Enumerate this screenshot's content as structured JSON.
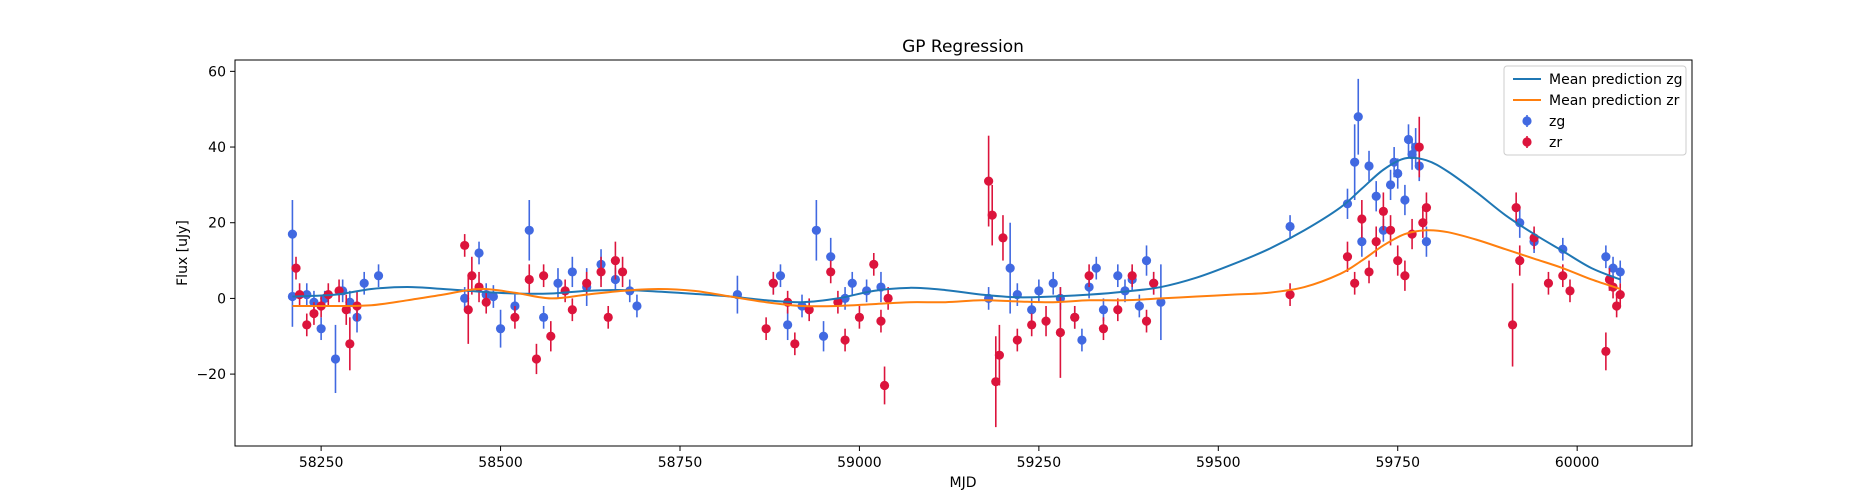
{
  "chart_data": {
    "type": "scatter",
    "title": "GP Regression",
    "xlabel": "MJD",
    "ylabel": "Flux [uJy]",
    "xlim": [
      58130,
      60160
    ],
    "ylim": [
      -39,
      63
    ],
    "xticks": [
      58250,
      58500,
      58750,
      59000,
      59250,
      59500,
      59750,
      60000
    ],
    "yticks": [
      -20,
      0,
      20,
      40,
      60
    ],
    "legend_position": "top-right",
    "grid": false,
    "lines": [
      {
        "name": "Mean prediction zg",
        "color": "#1f77b4",
        "x": [
          58210,
          58270,
          58320,
          58370,
          58420,
          58470,
          58520,
          58570,
          58620,
          58670,
          58720,
          58770,
          58820,
          58870,
          58920,
          58970,
          59020,
          59070,
          59120,
          59170,
          59220,
          59270,
          59320,
          59370,
          59420,
          59470,
          59520,
          59570,
          59620,
          59670,
          59700,
          59730,
          59760,
          59790,
          59820,
          59860,
          59900,
          59940,
          59980,
          60020,
          60060
        ],
        "y": [
          0.5,
          1.0,
          2.5,
          3.0,
          2.5,
          1.8,
          1.3,
          1.3,
          2.0,
          2.2,
          1.8,
          1.2,
          0.5,
          -0.5,
          -1.0,
          0.0,
          2.0,
          2.8,
          2.2,
          1.0,
          0.3,
          0.5,
          1.0,
          1.8,
          3.0,
          5.5,
          9.0,
          13.0,
          18.0,
          24.0,
          29.0,
          34.0,
          37.0,
          36.5,
          33.5,
          28.0,
          22.0,
          17.0,
          12.5,
          8.0,
          5.0
        ]
      },
      {
        "name": "Mean prediction zr",
        "color": "#ff7f0e",
        "x": [
          58210,
          58270,
          58320,
          58370,
          58420,
          58470,
          58520,
          58570,
          58620,
          58670,
          58720,
          58770,
          58820,
          58870,
          58920,
          58970,
          59020,
          59070,
          59120,
          59170,
          59220,
          59270,
          59320,
          59370,
          59420,
          59470,
          59520,
          59570,
          59620,
          59670,
          59700,
          59730,
          59760,
          59790,
          59820,
          59860,
          59900,
          59940,
          59980,
          60020,
          60060
        ],
        "y": [
          -2.0,
          -2.0,
          -1.8,
          -0.5,
          1.0,
          2.5,
          1.5,
          0.0,
          1.0,
          2.0,
          2.5,
          2.0,
          0.5,
          -1.0,
          -2.0,
          -2.0,
          -1.5,
          -1.0,
          -1.0,
          -0.5,
          -0.8,
          -1.0,
          -0.5,
          -0.5,
          0.0,
          0.5,
          1.0,
          1.5,
          3.0,
          6.5,
          10.0,
          14.0,
          17.0,
          18.0,
          17.5,
          15.5,
          13.0,
          10.5,
          8.0,
          5.0,
          2.5
        ]
      }
    ],
    "series": [
      {
        "name": "zg",
        "color": "#4169e1",
        "points": [
          [
            58210,
            17,
            9
          ],
          [
            58210,
            0.5,
            8
          ],
          [
            58230,
            1,
            3
          ],
          [
            58240,
            -1,
            3
          ],
          [
            58250,
            -8,
            3
          ],
          [
            58255,
            0,
            2
          ],
          [
            58270,
            -16,
            9
          ],
          [
            58280,
            2,
            3
          ],
          [
            58290,
            -1,
            3
          ],
          [
            58300,
            -5,
            4
          ],
          [
            58310,
            4,
            3
          ],
          [
            58330,
            6,
            3
          ],
          [
            58450,
            0,
            3
          ],
          [
            58470,
            12,
            3
          ],
          [
            58480,
            1,
            3
          ],
          [
            58490,
            0.5,
            3
          ],
          [
            58500,
            -8,
            5
          ],
          [
            58520,
            -2,
            3
          ],
          [
            58540,
            18,
            8
          ],
          [
            58560,
            -5,
            3
          ],
          [
            58580,
            4,
            4
          ],
          [
            58600,
            7,
            4
          ],
          [
            58620,
            3,
            5
          ],
          [
            58640,
            9,
            4
          ],
          [
            58660,
            5,
            3
          ],
          [
            58680,
            2,
            3
          ],
          [
            58690,
            -2,
            3
          ],
          [
            58830,
            1,
            5
          ],
          [
            58880,
            4,
            3
          ],
          [
            58890,
            6,
            3
          ],
          [
            58900,
            -7,
            4
          ],
          [
            58920,
            -2,
            3
          ],
          [
            58940,
            18,
            8
          ],
          [
            58950,
            -10,
            4
          ],
          [
            58960,
            11,
            5
          ],
          [
            58980,
            0,
            3
          ],
          [
            58990,
            4,
            3
          ],
          [
            59010,
            2,
            3
          ],
          [
            59030,
            3,
            4
          ],
          [
            59180,
            0,
            3
          ],
          [
            59210,
            8,
            12
          ],
          [
            59220,
            1,
            3
          ],
          [
            59240,
            -3,
            3
          ],
          [
            59250,
            2,
            3
          ],
          [
            59270,
            4,
            3
          ],
          [
            59280,
            0,
            3
          ],
          [
            59300,
            -5,
            3
          ],
          [
            59310,
            -11,
            3
          ],
          [
            59320,
            3,
            3
          ],
          [
            59330,
            8,
            3
          ],
          [
            59340,
            -3,
            3
          ],
          [
            59360,
            6,
            3
          ],
          [
            59370,
            2,
            3
          ],
          [
            59380,
            5,
            3
          ],
          [
            59390,
            -2,
            3
          ],
          [
            59400,
            10,
            4
          ],
          [
            59410,
            4,
            3
          ],
          [
            59420,
            -1,
            10
          ],
          [
            59600,
            19,
            3
          ],
          [
            59680,
            25,
            4
          ],
          [
            59690,
            36,
            10
          ],
          [
            59695,
            48,
            10
          ],
          [
            59700,
            15,
            4
          ],
          [
            59710,
            35,
            4
          ],
          [
            59720,
            27,
            4
          ],
          [
            59730,
            18,
            3
          ],
          [
            59740,
            30,
            4
          ],
          [
            59745,
            36,
            4
          ],
          [
            59750,
            33,
            4
          ],
          [
            59760,
            26,
            4
          ],
          [
            59765,
            42,
            4
          ],
          [
            59770,
            38,
            4
          ],
          [
            59775,
            40,
            5
          ],
          [
            59780,
            35,
            4
          ],
          [
            59790,
            15,
            4
          ],
          [
            59920,
            20,
            4
          ],
          [
            59940,
            15,
            3
          ],
          [
            59980,
            13,
            3
          ],
          [
            60040,
            11,
            3
          ],
          [
            60050,
            8,
            3
          ],
          [
            60060,
            7,
            3
          ]
        ]
      },
      {
        "name": "zr",
        "color": "#dc143c",
        "points": [
          [
            58215,
            8,
            3
          ],
          [
            58220,
            1,
            3
          ],
          [
            58230,
            -7,
            3
          ],
          [
            58240,
            -4,
            3
          ],
          [
            58250,
            -2,
            3
          ],
          [
            58260,
            1,
            3
          ],
          [
            58275,
            2,
            3
          ],
          [
            58285,
            -3,
            4
          ],
          [
            58290,
            -12,
            7
          ],
          [
            58300,
            -2,
            4
          ],
          [
            58450,
            14,
            3
          ],
          [
            58455,
            -3,
            9
          ],
          [
            58460,
            6,
            5
          ],
          [
            58470,
            3,
            4
          ],
          [
            58480,
            -1,
            3
          ],
          [
            58520,
            -5,
            3
          ],
          [
            58540,
            5,
            4
          ],
          [
            58550,
            -16,
            4
          ],
          [
            58560,
            6,
            3
          ],
          [
            58570,
            -10,
            4
          ],
          [
            58590,
            2,
            3
          ],
          [
            58600,
            -3,
            3
          ],
          [
            58620,
            4,
            3
          ],
          [
            58640,
            7,
            4
          ],
          [
            58650,
            -5,
            3
          ],
          [
            58660,
            10,
            5
          ],
          [
            58670,
            7,
            4
          ],
          [
            58870,
            -8,
            3
          ],
          [
            58880,
            4,
            3
          ],
          [
            58900,
            -1,
            3
          ],
          [
            58910,
            -12,
            3
          ],
          [
            58930,
            -3,
            3
          ],
          [
            58960,
            7,
            3
          ],
          [
            58970,
            -1,
            3
          ],
          [
            58980,
            -11,
            3
          ],
          [
            59000,
            -5,
            3
          ],
          [
            59020,
            9,
            3
          ],
          [
            59030,
            -6,
            3
          ],
          [
            59035,
            -23,
            5
          ],
          [
            59040,
            0,
            3
          ],
          [
            59180,
            31,
            12
          ],
          [
            59185,
            22,
            8
          ],
          [
            59190,
            -22,
            12
          ],
          [
            59195,
            -15,
            8
          ],
          [
            59200,
            16,
            6
          ],
          [
            59220,
            -11,
            3
          ],
          [
            59240,
            -7,
            3
          ],
          [
            59260,
            -6,
            4
          ],
          [
            59280,
            -9,
            12
          ],
          [
            59300,
            -5,
            3
          ],
          [
            59320,
            6,
            3
          ],
          [
            59340,
            -8,
            3
          ],
          [
            59360,
            -3,
            3
          ],
          [
            59380,
            6,
            3
          ],
          [
            59400,
            -6,
            3
          ],
          [
            59410,
            4,
            3
          ],
          [
            59600,
            1,
            3
          ],
          [
            59680,
            11,
            4
          ],
          [
            59690,
            4,
            3
          ],
          [
            59700,
            21,
            5
          ],
          [
            59710,
            7,
            3
          ],
          [
            59720,
            15,
            4
          ],
          [
            59730,
            23,
            5
          ],
          [
            59740,
            18,
            4
          ],
          [
            59750,
            10,
            4
          ],
          [
            59760,
            6,
            4
          ],
          [
            59770,
            17,
            4
          ],
          [
            59780,
            40,
            8
          ],
          [
            59785,
            20,
            4
          ],
          [
            59790,
            24,
            4
          ],
          [
            59910,
            -7,
            11
          ],
          [
            59915,
            24,
            4
          ],
          [
            59920,
            10,
            4
          ],
          [
            59940,
            16,
            3
          ],
          [
            59960,
            4,
            3
          ],
          [
            59980,
            6,
            3
          ],
          [
            59990,
            2,
            3
          ],
          [
            60040,
            -14,
            5
          ],
          [
            60045,
            5,
            3
          ],
          [
            60050,
            3,
            3
          ],
          [
            60055,
            -2,
            3
          ],
          [
            60060,
            1,
            3
          ]
        ]
      }
    ]
  }
}
